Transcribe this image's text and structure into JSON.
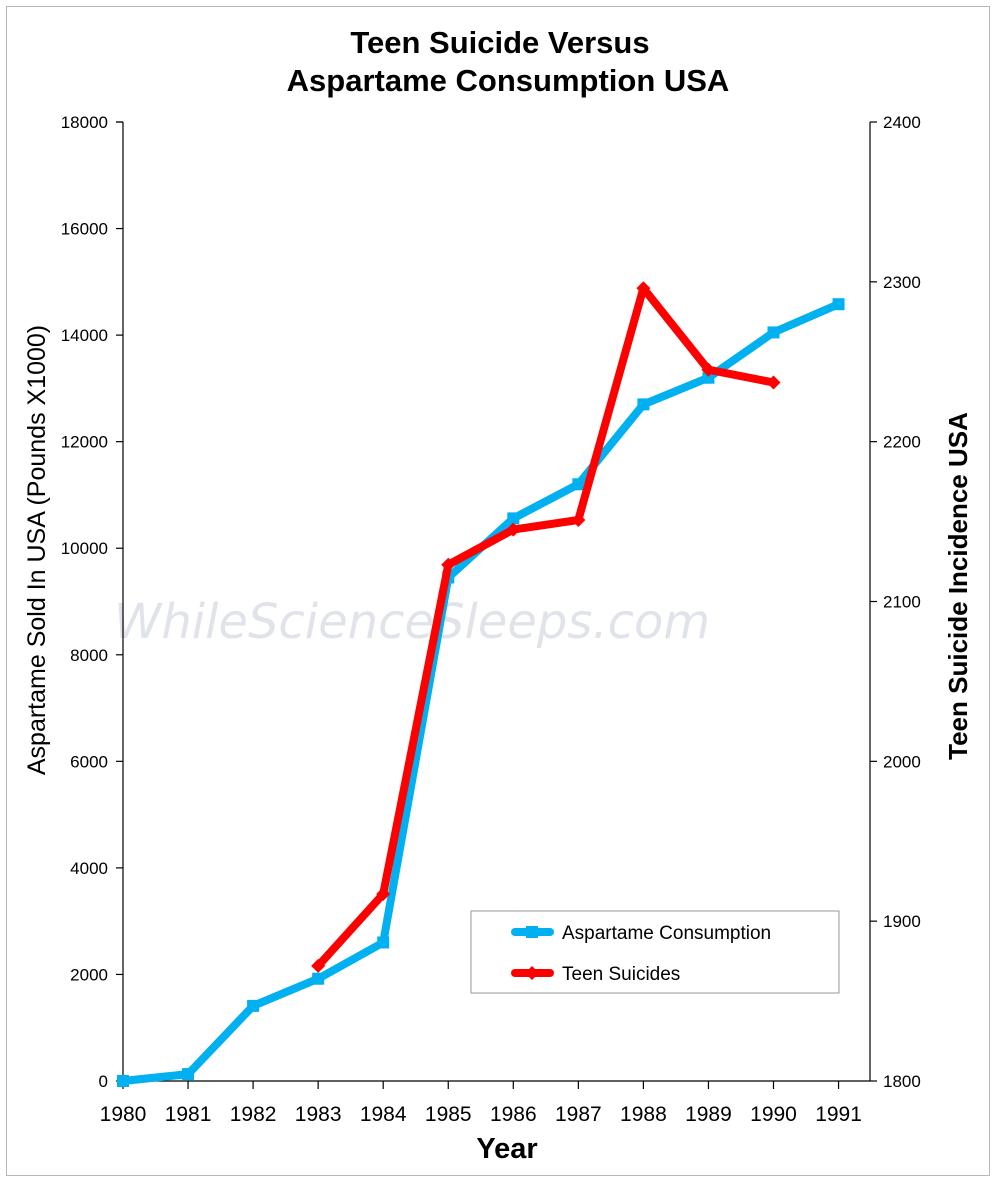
{
  "watermark": "WhileScienceSleeps.com",
  "chart_data": {
    "type": "line",
    "title_line1": "Teen Suicide Versus",
    "title_line2": "Aspartame Consumption USA",
    "xlabel": "Year",
    "ylabel_left": "Aspartame Sold In USA  (Pounds X1000)",
    "ylabel_right": "Teen Suicide Incidence USA",
    "x": [
      "1980",
      "1981",
      "1982",
      "1983",
      "1984",
      "1985",
      "1986",
      "1987",
      "1988",
      "1989",
      "1990",
      "1991"
    ],
    "y_left_range": [
      0,
      18000
    ],
    "y_left_ticks": [
      "0",
      "2000",
      "4000",
      "6000",
      "8000",
      "10000",
      "12000",
      "14000",
      "16000",
      "18000"
    ],
    "y_right_range": [
      1800,
      2400
    ],
    "y_right_ticks": [
      "1800",
      "1900",
      "2000",
      "2100",
      "2200",
      "2300",
      "2400"
    ],
    "grid": false,
    "legend_position": "bottom-right",
    "series": [
      {
        "name": "Aspartame Consumption",
        "axis": "left",
        "color": "#00b0f0",
        "marker": "square",
        "values": [
          0,
          130,
          1410,
          1920,
          2600,
          9450,
          10560,
          11200,
          12700,
          13200,
          14050,
          14580
        ]
      },
      {
        "name": "Teen Suicides",
        "axis": "right",
        "color": "#ff0000",
        "marker": "diamond",
        "values": [
          null,
          null,
          null,
          1872,
          1917,
          2123,
          2145,
          2151,
          2296,
          2245,
          2237,
          null
        ]
      }
    ]
  }
}
